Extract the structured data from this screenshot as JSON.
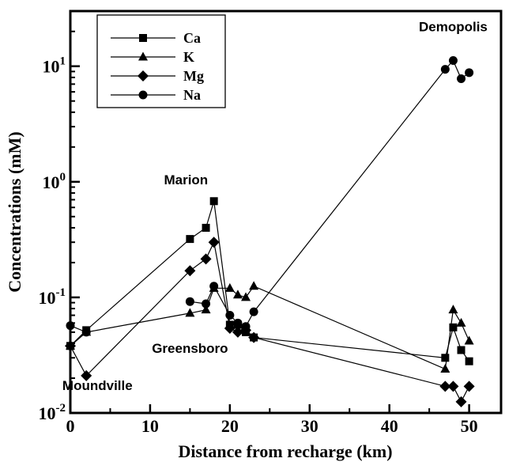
{
  "chart_data": {
    "type": "scatter",
    "xlabel": "Distance from recharge (km)",
    "ylabel": "Concentrations (mM)",
    "xlim": [
      0,
      54
    ],
    "ylim": [
      0.01,
      30
    ],
    "yscale": "log",
    "x_ticks": [
      0,
      10,
      20,
      30,
      40,
      50
    ],
    "y_ticks": [
      {
        "value": 0.01,
        "base": "10",
        "exp": "-2"
      },
      {
        "value": 0.1,
        "base": "10",
        "exp": "-1"
      },
      {
        "value": 1,
        "base": "10",
        "exp": "0"
      },
      {
        "value": 10,
        "base": "10",
        "exp": "1"
      }
    ],
    "grid": false,
    "legend_position": "top-left",
    "series": [
      {
        "name": "Ca",
        "marker": "square",
        "segments": [
          [
            [
              0,
              0.038
            ],
            [
              2,
              0.052
            ],
            [
              15,
              0.32
            ],
            [
              17,
              0.4
            ],
            [
              18,
              0.68
            ],
            [
              20,
              0.058
            ],
            [
              21,
              0.058
            ],
            [
              22,
              0.05
            ],
            [
              23,
              0.045
            ],
            [
              47,
              0.03
            ],
            [
              48,
              0.055
            ],
            [
              49,
              0.035
            ],
            [
              50,
              0.028
            ]
          ]
        ]
      },
      {
        "name": "K",
        "marker": "triangle",
        "segments": [
          [
            [
              0,
              0.038
            ],
            [
              2,
              0.05
            ],
            [
              15,
              0.073
            ],
            [
              17,
              0.078
            ],
            [
              18,
              0.12
            ],
            [
              20,
              0.12
            ],
            [
              21,
              0.105
            ],
            [
              22,
              0.1
            ],
            [
              23,
              0.125
            ],
            [
              47,
              0.024
            ],
            [
              48,
              0.078
            ],
            [
              49,
              0.06
            ],
            [
              50,
              0.042
            ]
          ]
        ]
      },
      {
        "name": "Mg",
        "marker": "diamond",
        "segments": [
          [
            [
              0,
              0.038
            ],
            [
              2,
              0.021
            ],
            [
              15,
              0.17
            ],
            [
              17,
              0.215
            ],
            [
              18,
              0.3
            ],
            [
              20,
              0.054
            ],
            [
              21,
              0.05
            ],
            [
              22,
              0.052
            ],
            [
              23,
              0.045
            ],
            [
              47,
              0.017
            ],
            [
              48,
              0.017
            ],
            [
              49,
              0.0125
            ],
            [
              50,
              0.017
            ]
          ]
        ]
      },
      {
        "name": "Na",
        "marker": "circle",
        "segments": [
          [
            [
              0,
              0.057
            ],
            [
              2,
              0.05
            ]
          ],
          [
            [
              15,
              0.092
            ],
            [
              17,
              0.088
            ],
            [
              18,
              0.125
            ],
            [
              20,
              0.07
            ],
            [
              21,
              0.06
            ],
            [
              22,
              0.056
            ],
            [
              23,
              0.075
            ],
            [
              47,
              9.4
            ],
            [
              48,
              11.2
            ],
            [
              49,
              7.8
            ],
            [
              50,
              8.8
            ]
          ]
        ]
      }
    ],
    "annotations": [
      {
        "text": "Demopolis",
        "x": 48,
        "y": 20
      },
      {
        "text": "Marion",
        "x": 14.5,
        "y": 0.95
      },
      {
        "text": "Greensboro",
        "x": 15,
        "y": 0.033
      },
      {
        "text": "Moundville",
        "x": 3.4,
        "y": 0.0158
      }
    ]
  }
}
